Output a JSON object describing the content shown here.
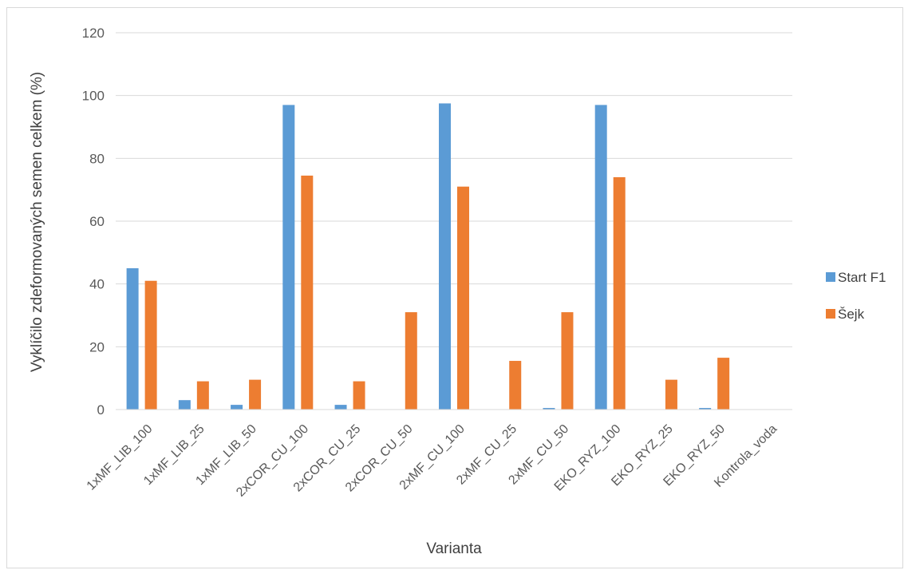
{
  "chart_data": {
    "type": "bar",
    "title": "",
    "xlabel": "Varianta",
    "ylabel": "Vyklíčilo zdeformovaných semen celkem (%)",
    "ylim": [
      0,
      120
    ],
    "yticks": [
      0,
      20,
      40,
      60,
      80,
      100,
      120
    ],
    "grid": true,
    "legend_position": "right",
    "categories": [
      "1xMF_LIB_100",
      "1xMF_LIB_25",
      "1xMF_LIB_50",
      "2xCOR_CU_100",
      "2xCOR_CU_25",
      "2xCOR_CU_50",
      "2xMF_CU_100",
      "2xMF_CU_25",
      "2xMF_CU_50",
      "EKO_RYZ_100",
      "EKO_RYZ_25",
      "EKO_RYZ_50",
      "Kontrola_voda"
    ],
    "series": [
      {
        "name": "Start F1",
        "color": "#5b9bd5",
        "values": [
          45,
          3,
          1.5,
          97,
          1.5,
          0,
          97.5,
          0,
          0.5,
          97,
          0,
          0.5,
          0
        ]
      },
      {
        "name": "Šejk",
        "color": "#ed7d31",
        "values": [
          41,
          9,
          9.5,
          74.5,
          9,
          31,
          71,
          15.5,
          31,
          74,
          9.5,
          16.5,
          0
        ]
      }
    ]
  }
}
